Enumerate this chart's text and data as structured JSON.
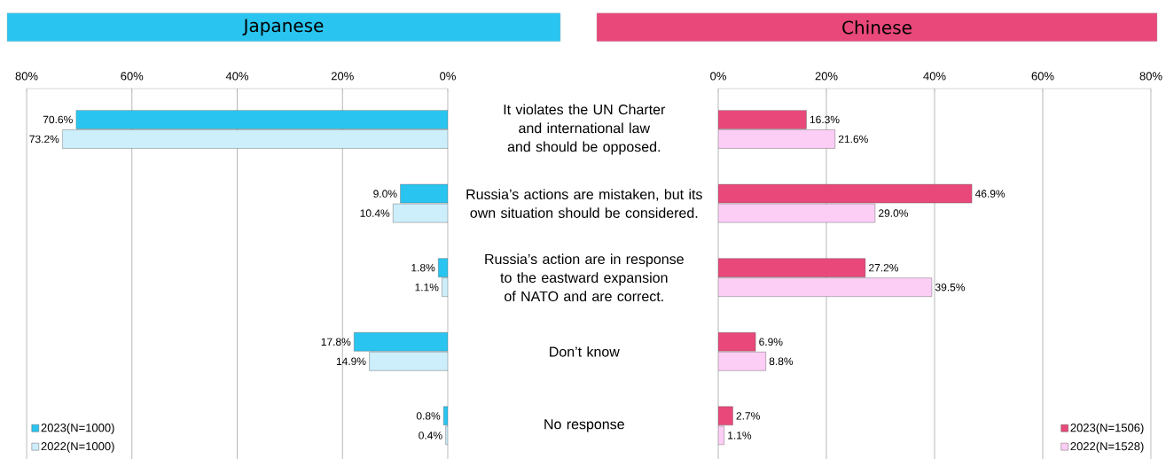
{
  "chart_data": [
    {
      "type": "bar",
      "orientation": "horizontal",
      "title": "Japanese",
      "categories": [
        "It violates the UN Charter and international law and should be opposed.",
        "Russia’s actions are mistaken, but its own situation should be considered.",
        "Russia’s action are in response to the eastward expansion of NATO and are correct.",
        "Don’t know",
        "No response"
      ],
      "series": [
        {
          "name": "2023(N=1000)",
          "color": "#29c5f0",
          "values": [
            70.6,
            9.0,
            1.8,
            17.8,
            0.8
          ],
          "value_labels": [
            "70.6%",
            "9.0%",
            "1.8%",
            "17.8%",
            "0.8%"
          ]
        },
        {
          "name": "2022(N=1000)",
          "color": "#cdeefb",
          "values": [
            73.2,
            10.4,
            1.1,
            14.9,
            0.4
          ],
          "value_labels": [
            "73.2%",
            "10.4%",
            "1.1%",
            "14.9%",
            "0.4%"
          ]
        }
      ],
      "xlim": [
        80,
        0
      ],
      "xticks": [
        {
          "value": 80,
          "label": "80%"
        },
        {
          "value": 60,
          "label": "60%"
        },
        {
          "value": 40,
          "label": "40%"
        },
        {
          "value": 20,
          "label": "20%"
        },
        {
          "value": 0,
          "label": "0%"
        }
      ],
      "grid": "x",
      "legend": "bottom left"
    },
    {
      "type": "bar",
      "orientation": "horizontal",
      "title": "Chinese",
      "categories": [
        null,
        null,
        null,
        null,
        null
      ],
      "series": [
        {
          "name": "2023(N=1506)",
          "color": "#e8487a",
          "values": [
            16.3,
            46.9,
            27.2,
            6.9,
            2.7
          ],
          "value_labels": [
            "16.3%",
            "46.9%",
            "27.2%",
            "6.9%",
            "2.7%"
          ]
        },
        {
          "name": "2022(N=1528)",
          "color": "#fccdf5",
          "values": [
            21.6,
            29.0,
            39.5,
            8.8,
            1.1
          ],
          "value_labels": [
            "21.6%",
            "29.0%",
            "39.5%",
            "8.8%",
            "1.1%"
          ]
        }
      ],
      "xlim": [
        0,
        80
      ],
      "xticks": [
        {
          "value": 0,
          "label": "0%"
        },
        {
          "value": 20,
          "label": "20%"
        },
        {
          "value": 40,
          "label": "40%"
        },
        {
          "value": 60,
          "label": "60%"
        },
        {
          "value": 80,
          "label": "80%"
        }
      ],
      "grid": "x",
      "legend": "bottom right"
    }
  ]
}
